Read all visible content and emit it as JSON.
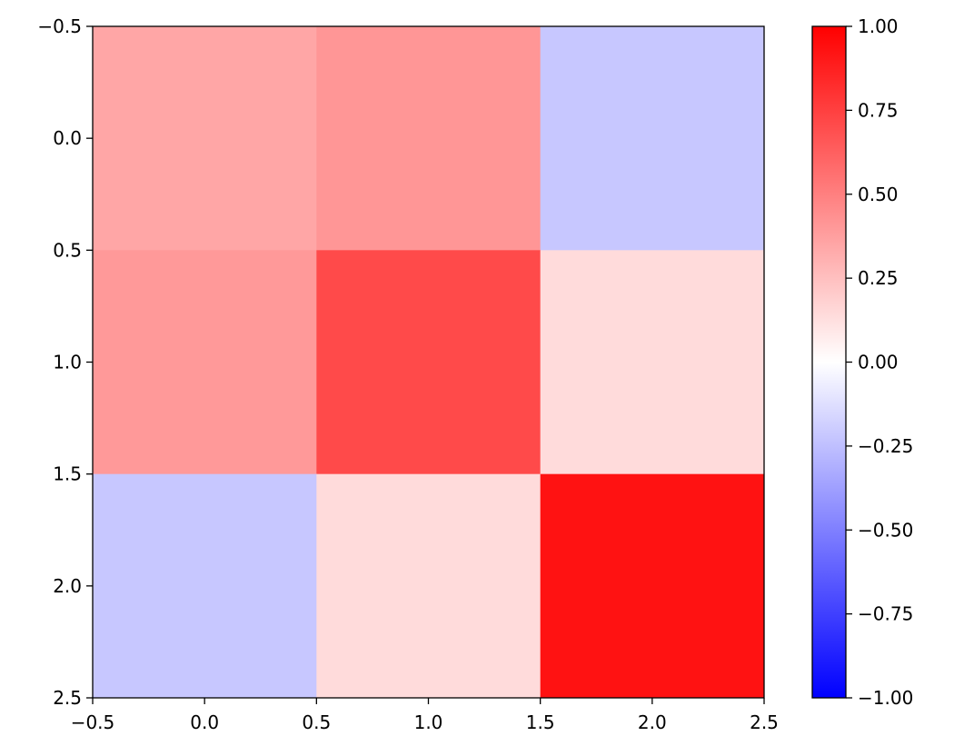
{
  "chart_data": {
    "type": "heatmap",
    "title": "",
    "xlabel": "",
    "ylabel": "",
    "xlim": [
      -0.5,
      2.5
    ],
    "ylim": [
      2.5,
      -0.5
    ],
    "y_axis_inverted": true,
    "grid": false,
    "x_ticks": [
      "−0.5",
      "0.0",
      "0.5",
      "1.0",
      "1.5",
      "2.0",
      "2.5"
    ],
    "y_ticks": [
      "−0.5",
      "0.0",
      "0.5",
      "1.0",
      "1.5",
      "2.0",
      "2.5"
    ],
    "x_tick_values": [
      -0.5,
      0.0,
      0.5,
      1.0,
      1.5,
      2.0,
      2.5
    ],
    "y_tick_values": [
      -0.5,
      0.0,
      0.5,
      1.0,
      1.5,
      2.0,
      2.5
    ],
    "matrix": [
      [
        0.35,
        0.41,
        -0.22
      ],
      [
        0.4,
        0.71,
        0.14
      ],
      [
        -0.22,
        0.14,
        0.93
      ]
    ],
    "colormap": "bwr",
    "colormap_stops": [
      "#0000ff",
      "#ffffff",
      "#ff0000"
    ],
    "value_range": [
      -1.0,
      1.0
    ],
    "colorbar": {
      "position": "right",
      "tick_values": [
        1.0,
        0.75,
        0.5,
        0.25,
        0.0,
        -0.25,
        -0.5,
        -0.75,
        -1.0
      ],
      "tick_labels": [
        "1.00",
        "0.75",
        "0.50",
        "0.25",
        "0.00",
        "−0.25",
        "−0.50",
        "−0.75",
        "−1.00"
      ]
    }
  }
}
